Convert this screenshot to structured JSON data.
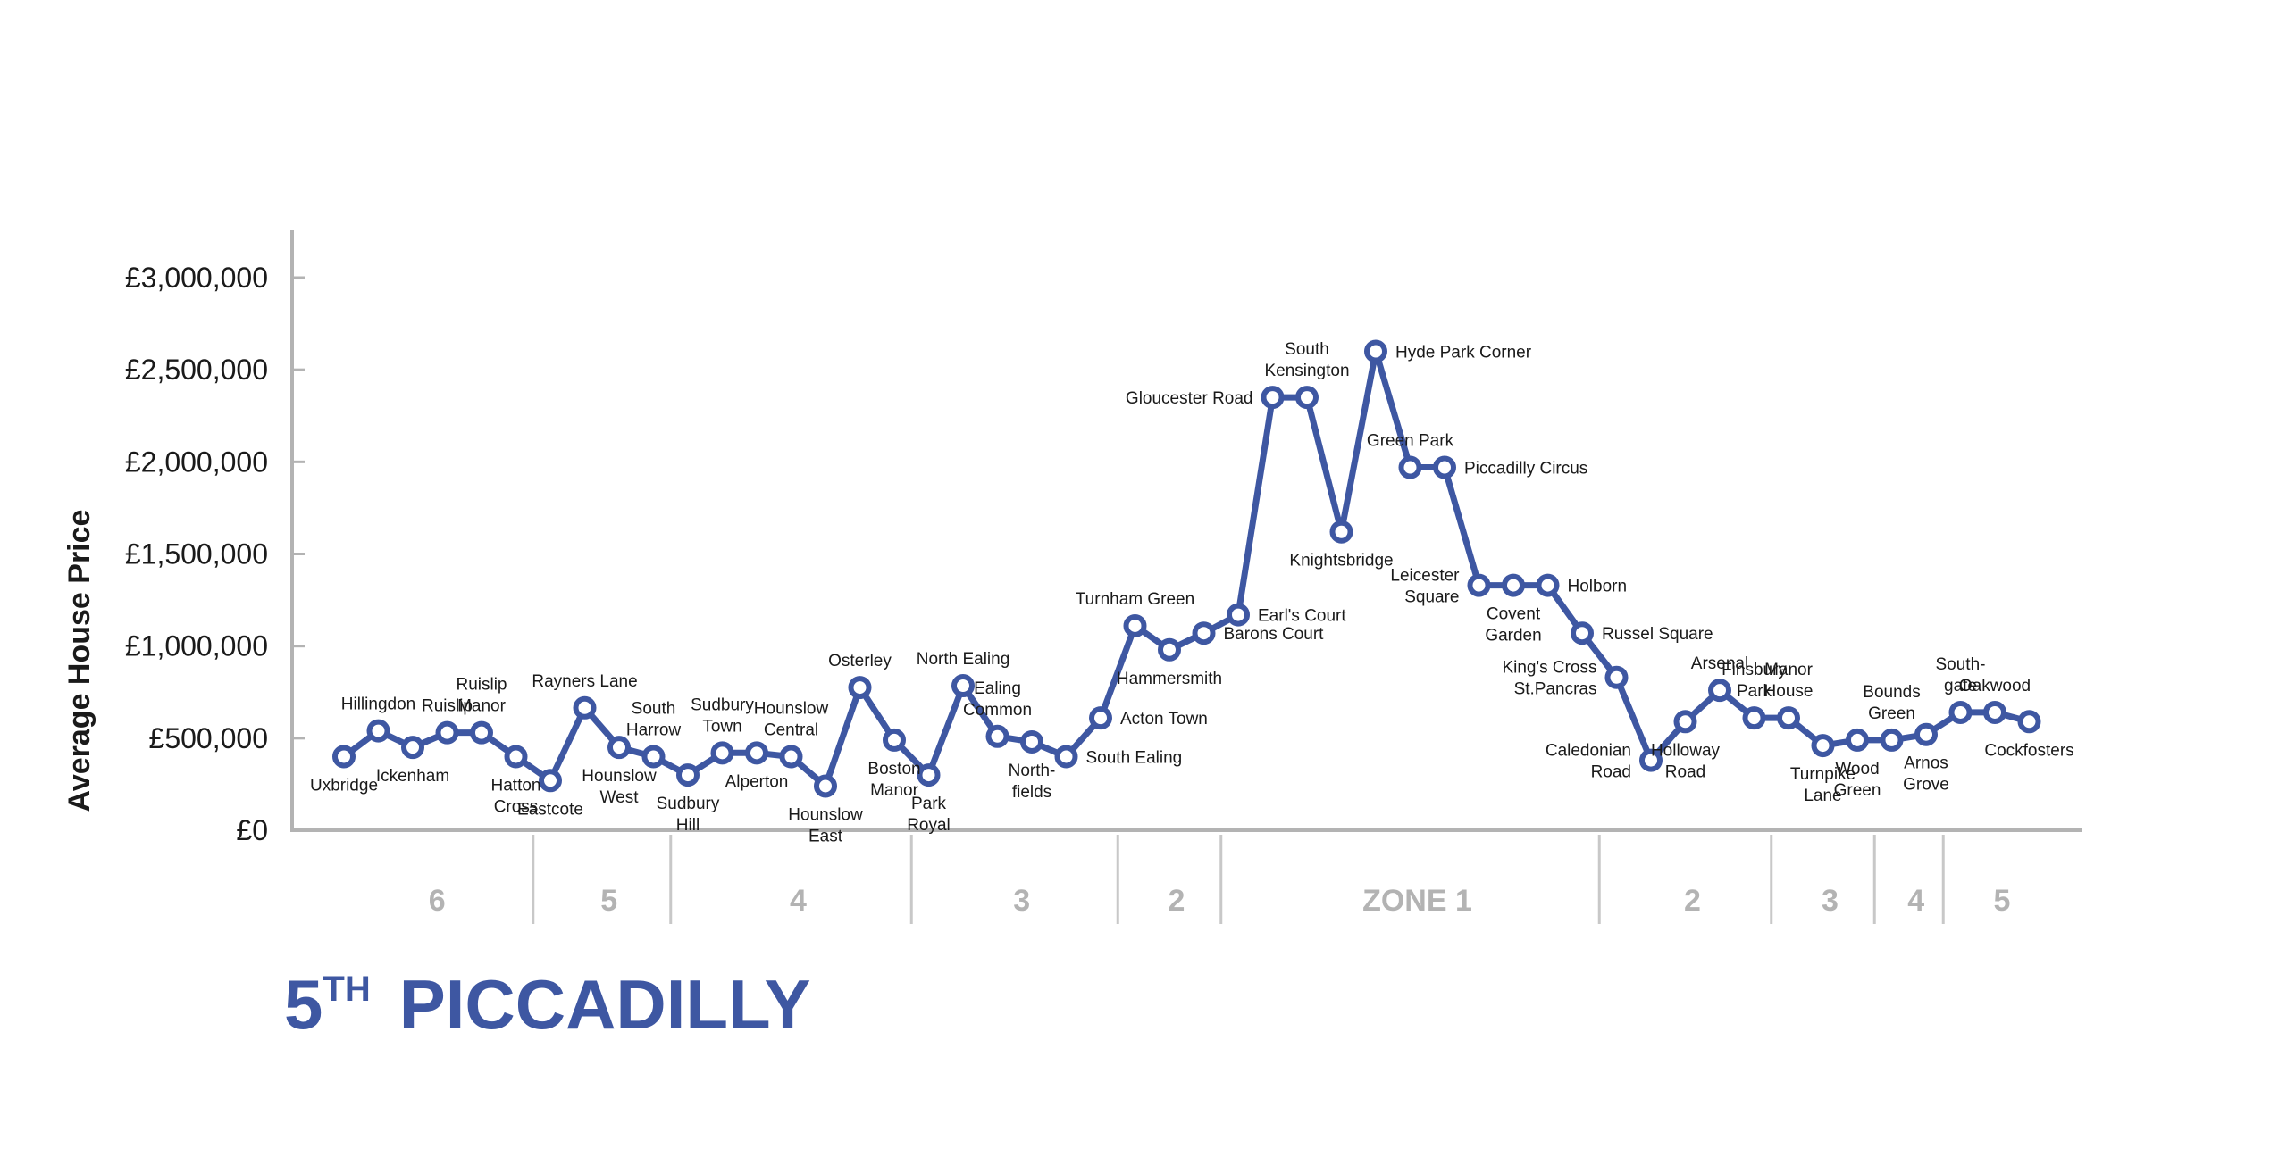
{
  "chart_data": {
    "type": "line",
    "title": "",
    "xlabel": "",
    "ylabel": "Average House Price",
    "ylim": [
      0,
      3000000
    ],
    "yticks": [
      {
        "value": 0,
        "label": "£0"
      },
      {
        "value": 500000,
        "label": "£500,000"
      },
      {
        "value": 1000000,
        "label": "£1,000,000"
      },
      {
        "value": 1500000,
        "label": "£1,500,000"
      },
      {
        "value": 2000000,
        "label": "£2,000,000"
      },
      {
        "value": 2500000,
        "label": "£2,500,000"
      },
      {
        "value": 3000000,
        "label": "£3,000,000"
      }
    ],
    "grid": false,
    "color": "#3e57a2",
    "series": [
      {
        "points": [
          {
            "station": "Uxbridge",
            "lines": [
              "Uxbridge"
            ],
            "pos": "below",
            "value": 400000
          },
          {
            "station": "Hillingdon",
            "lines": [
              "Hillingdon"
            ],
            "pos": "above",
            "value": 540000
          },
          {
            "station": "Ickenham",
            "lines": [
              "Ickenham"
            ],
            "pos": "below",
            "value": 450000
          },
          {
            "station": "Ruislip",
            "lines": [
              "Ruislip"
            ],
            "pos": "above",
            "value": 530000
          },
          {
            "station": "Ruislip Manor",
            "lines": [
              "Ruislip",
              "Manor"
            ],
            "pos": "above",
            "value": 530000
          },
          {
            "station": "Hatton Cross",
            "lines": [
              "Hatton",
              "Cross"
            ],
            "pos": "below",
            "value": 400000
          },
          {
            "station": "Eastcote",
            "lines": [
              "Eastcote"
            ],
            "pos": "below",
            "value": 270000
          },
          {
            "station": "Rayners Lane",
            "lines": [
              "Rayners Lane"
            ],
            "pos": "above",
            "value": 665000
          },
          {
            "station": "Hounslow West",
            "lines": [
              "Hounslow",
              "West"
            ],
            "pos": "below",
            "value": 450000
          },
          {
            "station": "South Harrow",
            "lines": [
              "South",
              "Harrow"
            ],
            "pos": "above",
            "value": 400000
          },
          {
            "station": "Sudbury Hill",
            "lines": [
              "Sudbury",
              "Hill"
            ],
            "pos": "below",
            "value": 300000
          },
          {
            "station": "Sudbury Town",
            "lines": [
              "Sudbury",
              "Town"
            ],
            "pos": "above",
            "value": 420000
          },
          {
            "station": "Alperton",
            "lines": [
              "Alperton"
            ],
            "pos": "below",
            "value": 420000
          },
          {
            "station": "Hounslow Central",
            "lines": [
              "Hounslow",
              "Central"
            ],
            "pos": "above",
            "value": 400000
          },
          {
            "station": "Hounslow East",
            "lines": [
              "Hounslow",
              "East"
            ],
            "pos": "below",
            "value": 240000
          },
          {
            "station": "Osterley",
            "lines": [
              "Osterley"
            ],
            "pos": "above",
            "value": 775000
          },
          {
            "station": "Boston Manor",
            "lines": [
              "Boston",
              "Manor"
            ],
            "pos": "below",
            "value": 490000
          },
          {
            "station": "Park Royal",
            "lines": [
              "Park",
              "Royal"
            ],
            "pos": "below",
            "value": 300000
          },
          {
            "station": "North Ealing",
            "lines": [
              "North Ealing"
            ],
            "pos": "above",
            "value": 785000
          },
          {
            "station": "Ealing Common",
            "lines": [
              "Ealing",
              "Common"
            ],
            "pos": "above",
            "value": 510000
          },
          {
            "station": "North-fields",
            "lines": [
              "North-",
              "fields"
            ],
            "pos": "below",
            "value": 480000
          },
          {
            "station": "South Ealing",
            "lines": [
              "South Ealing"
            ],
            "pos": "right",
            "value": 400000
          },
          {
            "station": "Acton Town",
            "lines": [
              "Acton Town"
            ],
            "pos": "right",
            "value": 610000
          },
          {
            "station": "Turnham Green",
            "lines": [
              "Turnham Green"
            ],
            "pos": "above",
            "value": 1110000
          },
          {
            "station": "Hammersmith",
            "lines": [
              "Hammersmith"
            ],
            "pos": "below",
            "value": 980000
          },
          {
            "station": "Barons Court",
            "lines": [
              "Barons Court"
            ],
            "pos": "right",
            "value": 1070000
          },
          {
            "station": "Earl's Court",
            "lines": [
              "Earl's Court"
            ],
            "pos": "right",
            "value": 1170000
          },
          {
            "station": "Gloucester Road",
            "lines": [
              "Gloucester Road"
            ],
            "pos": "left",
            "value": 2350000
          },
          {
            "station": "South Kensington",
            "lines": [
              "South",
              "Kensington"
            ],
            "pos": "above",
            "value": 2350000
          },
          {
            "station": "Knightsbridge",
            "lines": [
              "Knightsbridge"
            ],
            "pos": "below",
            "value": 1620000
          },
          {
            "station": "Hyde Park Corner",
            "lines": [
              "Hyde Park Corner"
            ],
            "pos": "right",
            "value": 2600000
          },
          {
            "station": "Green Park",
            "lines": [
              "Green Park"
            ],
            "pos": "above",
            "value": 1970000
          },
          {
            "station": "Piccadilly Circus",
            "lines": [
              "Piccadilly Circus"
            ],
            "pos": "right",
            "value": 1970000
          },
          {
            "station": "Leicester Square",
            "lines": [
              "Leicester",
              "Square"
            ],
            "pos": "left",
            "value": 1330000
          },
          {
            "station": "Covent Garden",
            "lines": [
              "Covent",
              "Garden"
            ],
            "pos": "below",
            "value": 1330000
          },
          {
            "station": "Holborn",
            "lines": [
              "Holborn"
            ],
            "pos": "right",
            "value": 1330000
          },
          {
            "station": "Russel Square",
            "lines": [
              "Russel Square"
            ],
            "pos": "right",
            "value": 1070000
          },
          {
            "station": "King's Cross St.Pancras",
            "lines": [
              "King's Cross",
              "St.Pancras"
            ],
            "pos": "left",
            "value": 830000
          },
          {
            "station": "Caledonian Road",
            "lines": [
              "Caledonian",
              "Road"
            ],
            "pos": "left",
            "value": 380000
          },
          {
            "station": "Holloway Road",
            "lines": [
              "Holloway",
              "Road"
            ],
            "pos": "below",
            "value": 590000
          },
          {
            "station": "Arsenal",
            "lines": [
              "Arsenal"
            ],
            "pos": "above",
            "value": 760000
          },
          {
            "station": "Finsbury Park",
            "lines": [
              "Finsbury",
              "Park"
            ],
            "pos": "above",
            "value": 610000
          },
          {
            "station": "Manor House",
            "lines": [
              "Manor",
              "House"
            ],
            "pos": "above",
            "value": 610000
          },
          {
            "station": "Turnpike Lane",
            "lines": [
              "Turnpike",
              "Lane"
            ],
            "pos": "below",
            "value": 460000
          },
          {
            "station": "Wood Green",
            "lines": [
              "Wood",
              "Green"
            ],
            "pos": "below",
            "value": 490000
          },
          {
            "station": "Bounds Green",
            "lines": [
              "Bounds",
              "Green"
            ],
            "pos": "above",
            "value": 490000
          },
          {
            "station": "Arnos Grove",
            "lines": [
              "Arnos",
              "Grove"
            ],
            "pos": "below",
            "value": 520000
          },
          {
            "station": "South-gate",
            "lines": [
              "South-",
              "gate"
            ],
            "pos": "above",
            "value": 640000
          },
          {
            "station": "Oakwood",
            "lines": [
              "Oakwood"
            ],
            "pos": "above",
            "value": 640000
          },
          {
            "station": "Cockfosters",
            "lines": [
              "Cockfosters"
            ],
            "pos": "below",
            "value": 590000
          }
        ]
      }
    ],
    "zones": [
      {
        "label": "6",
        "from": 0,
        "to": 5
      },
      {
        "label": "5",
        "from": 6,
        "to": 9
      },
      {
        "label": "4",
        "from": 10,
        "to": 16
      },
      {
        "label": "3",
        "from": 17,
        "to": 22
      },
      {
        "label": "2",
        "from": 23,
        "to": 25
      },
      {
        "label": "ZONE   1",
        "from": 26,
        "to": 36
      },
      {
        "label": "2",
        "from": 37,
        "to": 41
      },
      {
        "label": "3",
        "from": 42,
        "to": 44
      },
      {
        "label": "4",
        "from": 45,
        "to": 46
      },
      {
        "label": "5",
        "from": 47,
        "to": 49
      }
    ]
  },
  "title": {
    "number": "5",
    "suffix": "TH",
    "line_name": "PICCADILLY"
  }
}
